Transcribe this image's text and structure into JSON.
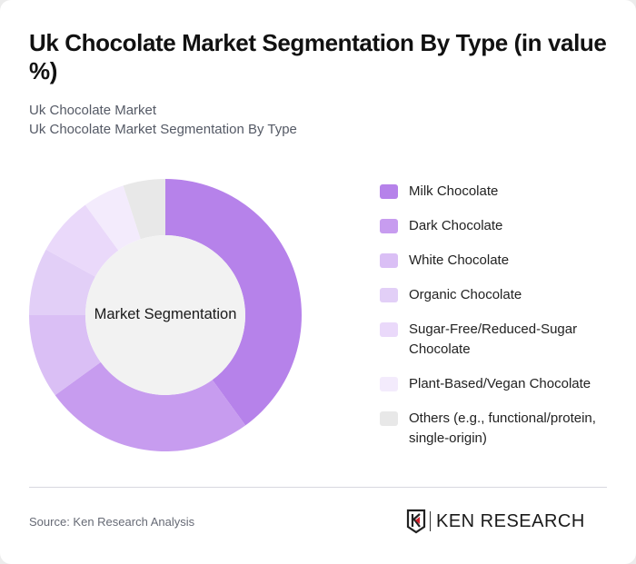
{
  "title": "Uk Chocolate Market Segmentation By Type (in value %)",
  "subtitle_lines": [
    "Uk Chocolate Market",
    "Uk Chocolate Market Segmentation By Type"
  ],
  "center_label": "Market Segmentation",
  "source": "Source: Ken Research Analysis",
  "logo": {
    "text": "KEN RESEARCH",
    "accent": "#d0202b"
  },
  "chart_data": {
    "type": "pie",
    "variant": "donut",
    "title": "Uk Chocolate Market Segmentation By Type (in value %)",
    "center_label": "Market Segmentation",
    "legend_position": "right",
    "categories": [
      "Milk Chocolate",
      "Dark Chocolate",
      "White Chocolate",
      "Organic Chocolate",
      "Sugar-Free/Reduced-Sugar Chocolate",
      "Plant-Based/Vegan Chocolate",
      "Others (e.g., functional/protein, single-origin)"
    ],
    "values": [
      40,
      25,
      10,
      8,
      7,
      5,
      5
    ],
    "colors": [
      "#b682ea",
      "#c79cef",
      "#dabff5",
      "#e2cff7",
      "#ead9fa",
      "#f3ebfc",
      "#e8e8e8"
    ],
    "unit": "%"
  }
}
